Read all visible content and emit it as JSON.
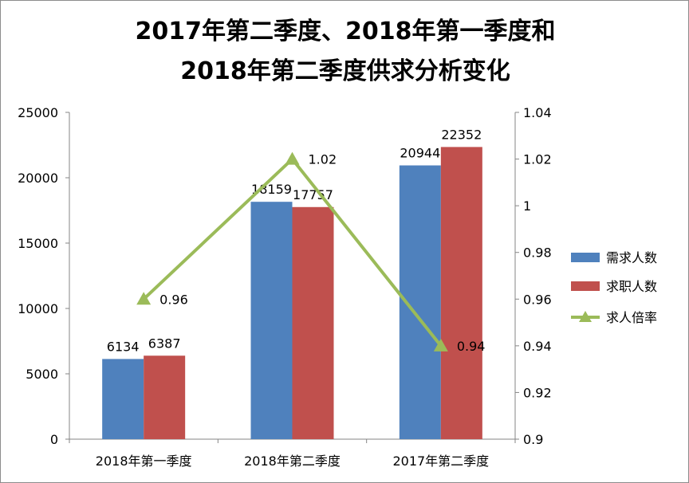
{
  "chart_data": {
    "type": "bar",
    "title_lines": [
      "2017年第二季度、2018年第一季度和",
      "2018年第二季度供求分析变化"
    ],
    "categories": [
      "2018年第一季度",
      "2018年第二季度",
      "2017年第二季度"
    ],
    "series": [
      {
        "name": "需求人数",
        "type": "bar",
        "axis": "left",
        "color": "#4f81bd",
        "values": [
          6134,
          18159,
          20944
        ],
        "labels": [
          "6134",
          "18159",
          "20944"
        ]
      },
      {
        "name": "求职人数",
        "type": "bar",
        "axis": "left",
        "color": "#c0504d",
        "values": [
          6387,
          17757,
          22352
        ],
        "labels": [
          "6387",
          "17757",
          "22352"
        ]
      },
      {
        "name": "求人倍率",
        "type": "line",
        "axis": "right",
        "color": "#9bbb59",
        "marker": "triangle",
        "values": [
          0.96,
          1.02,
          0.94
        ],
        "labels": [
          "0.96",
          "1.02",
          "0.94"
        ]
      }
    ],
    "y_left": {
      "min": 0,
      "max": 25000,
      "ticks": [
        "0",
        "5000",
        "10000",
        "15000",
        "20000",
        "25000"
      ]
    },
    "y_right": {
      "min": 0.9,
      "max": 1.04,
      "ticks": [
        "0.9",
        "0.92",
        "0.94",
        "0.96",
        "0.98",
        "1",
        "1.02",
        "1.04"
      ]
    },
    "legend_position": "right",
    "grid": false
  }
}
